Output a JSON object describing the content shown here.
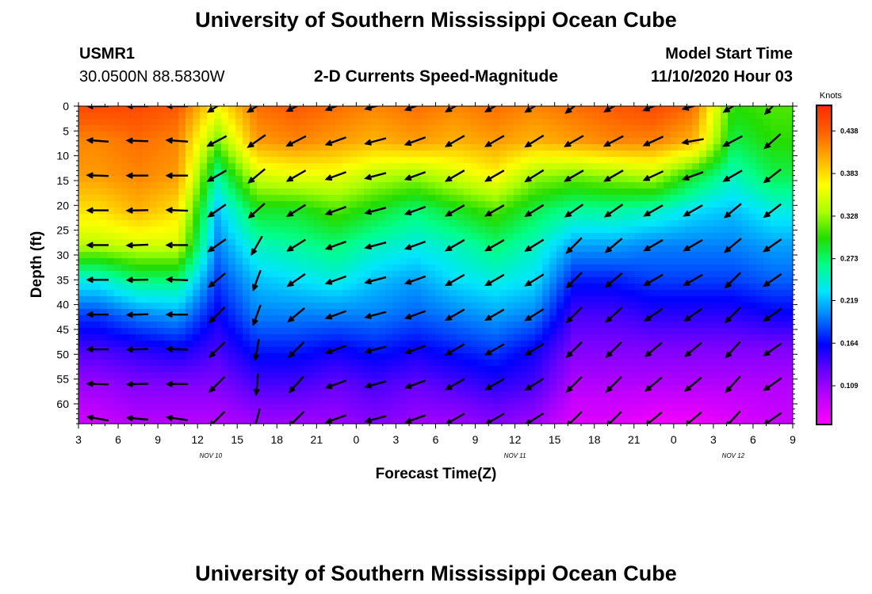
{
  "page": {
    "title_top": "University of Southern Mississippi Ocean Cube",
    "title_bottom": "University of Southern Mississippi Ocean Cube",
    "station_id": "USMR1",
    "station_coords": "30.0500N 88.5830W",
    "center_title": "2-D Currents Speed-Magnitude",
    "model_start_label": "Model Start Time",
    "model_start_value": "11/10/2020 Hour 03"
  },
  "colors": {
    "scale": [
      "#ff00ff",
      "#c000ff",
      "#6a00ff",
      "#0000ff",
      "#0077ff",
      "#00e5ff",
      "#00ff88",
      "#22dd00",
      "#aaff00",
      "#ffff00",
      "#ffb000",
      "#ff6000",
      "#ff2a00"
    ],
    "arrow": "#000000"
  },
  "chart_data": {
    "type": "heatmap",
    "xlabel": "Forecast Time(Z)",
    "ylabel": "Depth (ft)",
    "x_tick_labels": [
      "3",
      "6",
      "9",
      "12",
      "15",
      "18",
      "21",
      "0",
      "3",
      "6",
      "9",
      "12",
      "15",
      "18",
      "21",
      "0",
      "3",
      "6",
      "9"
    ],
    "x_range_hours": [
      3,
      57
    ],
    "date_labels": [
      {
        "text": "NOV 10",
        "hour": 13
      },
      {
        "text": "NOV 11",
        "hour": 36
      },
      {
        "text": "NOV 12",
        "hour": 52.5
      }
    ],
    "y_tick_labels": [
      "0",
      "5",
      "10",
      "15",
      "20",
      "25",
      "30",
      "35",
      "40",
      "45",
      "50",
      "55",
      "60"
    ],
    "ylim": [
      0,
      64
    ],
    "y_inverted": true,
    "colorbar": {
      "title": "Knots",
      "ticks": [
        0.438,
        0.383,
        0.328,
        0.273,
        0.219,
        0.164,
        0.109
      ],
      "range": [
        0.06,
        0.47
      ]
    },
    "arrow_hours": [
      4.5,
      7.5,
      10.5,
      13.5,
      16.5,
      19.5,
      22.5,
      25.5,
      28.5,
      31.5,
      34.5,
      37.5,
      40.5,
      43.5,
      46.5,
      49.5,
      52.5,
      55.5
    ],
    "arrow_depths_ft": [
      0,
      7,
      14,
      21,
      28,
      35,
      42,
      49,
      56,
      63
    ],
    "speed_grid": [
      [
        0.45,
        0.45,
        0.44,
        0.37,
        0.43,
        0.44,
        0.43,
        0.42,
        0.43,
        0.42,
        0.43,
        0.42,
        0.43,
        0.44,
        0.45,
        0.43,
        0.3,
        0.31
      ],
      [
        0.42,
        0.43,
        0.42,
        0.32,
        0.41,
        0.42,
        0.41,
        0.4,
        0.41,
        0.4,
        0.41,
        0.4,
        0.41,
        0.42,
        0.42,
        0.4,
        0.28,
        0.3
      ],
      [
        0.41,
        0.42,
        0.41,
        0.26,
        0.35,
        0.36,
        0.36,
        0.34,
        0.33,
        0.35,
        0.37,
        0.33,
        0.32,
        0.33,
        0.34,
        0.29,
        0.25,
        0.28
      ],
      [
        0.38,
        0.4,
        0.38,
        0.22,
        0.29,
        0.29,
        0.31,
        0.29,
        0.27,
        0.29,
        0.31,
        0.28,
        0.26,
        0.26,
        0.25,
        0.23,
        0.22,
        0.24
      ],
      [
        0.34,
        0.35,
        0.35,
        0.2,
        0.25,
        0.26,
        0.27,
        0.25,
        0.24,
        0.25,
        0.27,
        0.25,
        0.21,
        0.21,
        0.2,
        0.2,
        0.2,
        0.21
      ],
      [
        0.24,
        0.27,
        0.27,
        0.18,
        0.22,
        0.23,
        0.24,
        0.22,
        0.21,
        0.23,
        0.24,
        0.23,
        0.17,
        0.17,
        0.18,
        0.18,
        0.18,
        0.19
      ],
      [
        0.18,
        0.2,
        0.21,
        0.16,
        0.2,
        0.2,
        0.2,
        0.2,
        0.19,
        0.2,
        0.21,
        0.2,
        0.14,
        0.14,
        0.15,
        0.15,
        0.15,
        0.16
      ],
      [
        0.14,
        0.15,
        0.16,
        0.14,
        0.17,
        0.17,
        0.16,
        0.17,
        0.16,
        0.17,
        0.18,
        0.16,
        0.12,
        0.12,
        0.12,
        0.12,
        0.12,
        0.12
      ],
      [
        0.11,
        0.12,
        0.12,
        0.12,
        0.14,
        0.14,
        0.13,
        0.14,
        0.13,
        0.14,
        0.15,
        0.14,
        0.1,
        0.1,
        0.1,
        0.1,
        0.1,
        0.1
      ],
      [
        0.09,
        0.1,
        0.1,
        0.1,
        0.11,
        0.11,
        0.11,
        0.12,
        0.11,
        0.11,
        0.12,
        0.11,
        0.08,
        0.08,
        0.07,
        0.07,
        0.08,
        0.09
      ]
    ],
    "direction_grid_deg": [
      [
        180,
        180,
        180,
        212,
        212,
        207,
        200,
        195,
        200,
        210,
        210,
        212,
        218,
        210,
        203,
        195,
        212,
        225
      ],
      [
        176,
        178,
        176,
        208,
        215,
        207,
        200,
        195,
        200,
        210,
        210,
        212,
        210,
        208,
        205,
        190,
        208,
        222
      ],
      [
        178,
        180,
        180,
        210,
        220,
        210,
        200,
        195,
        200,
        210,
        210,
        212,
        210,
        210,
        205,
        200,
        210,
        218
      ],
      [
        180,
        181,
        178,
        215,
        222,
        212,
        200,
        195,
        200,
        210,
        210,
        212,
        215,
        215,
        210,
        210,
        220,
        218
      ],
      [
        180,
        182,
        180,
        215,
        240,
        212,
        200,
        195,
        200,
        210,
        210,
        212,
        225,
        220,
        210,
        210,
        220,
        215
      ],
      [
        180,
        181,
        178,
        220,
        250,
        215,
        200,
        195,
        200,
        210,
        210,
        212,
        225,
        220,
        210,
        210,
        225,
        215
      ],
      [
        180,
        182,
        180,
        225,
        250,
        220,
        200,
        195,
        200,
        210,
        210,
        212,
        225,
        222,
        215,
        215,
        225,
        215
      ],
      [
        180,
        182,
        178,
        225,
        260,
        225,
        200,
        195,
        200,
        210,
        210,
        212,
        225,
        225,
        220,
        220,
        228,
        215
      ],
      [
        178,
        182,
        180,
        225,
        265,
        228,
        200,
        195,
        200,
        210,
        210,
        212,
        225,
        225,
        220,
        220,
        228,
        215
      ],
      [
        170,
        175,
        172,
        225,
        255,
        225,
        200,
        195,
        200,
        210,
        210,
        212,
        225,
        225,
        220,
        220,
        228,
        215
      ]
    ]
  }
}
